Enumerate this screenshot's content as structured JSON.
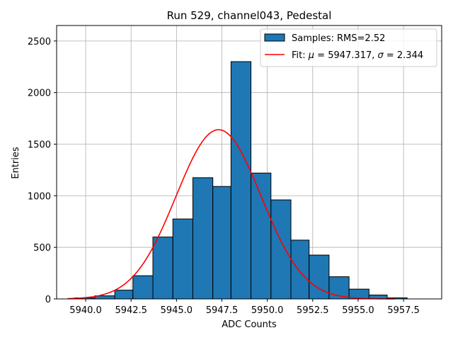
{
  "chart_data": {
    "type": "bar",
    "title": "Run 529, channel043, Pedestal",
    "xlabel": "ADC Counts",
    "ylabel": "Entries",
    "xlim": [
      5938.4,
      5959.6
    ],
    "ylim": [
      0,
      2650
    ],
    "grid": true,
    "legend_position": "top-right",
    "bar_color": "#1f77b4",
    "fit_color": "#ff0000",
    "x_ticks": [
      {
        "value": 5940.0,
        "label": "5940.0"
      },
      {
        "value": 5942.5,
        "label": "5942.5"
      },
      {
        "value": 5945.0,
        "label": "5945.0"
      },
      {
        "value": 5947.5,
        "label": "5947.5"
      },
      {
        "value": 5950.0,
        "label": "5950.0"
      },
      {
        "value": 5952.5,
        "label": "5952.5"
      },
      {
        "value": 5955.0,
        "label": "5955.0"
      },
      {
        "value": 5957.5,
        "label": "5957.5"
      }
    ],
    "y_ticks": [
      {
        "value": 0,
        "label": "0"
      },
      {
        "value": 500,
        "label": "500"
      },
      {
        "value": 1000,
        "label": "1000"
      },
      {
        "value": 1500,
        "label": "1500"
      },
      {
        "value": 2000,
        "label": "2000"
      },
      {
        "value": 2500,
        "label": "2500"
      }
    ],
    "bins": [
      {
        "x0": 5939.4,
        "x1": 5940.5,
        "count": 10
      },
      {
        "x0": 5940.5,
        "x1": 5941.6,
        "count": 30
      },
      {
        "x0": 5941.6,
        "x1": 5942.6,
        "count": 85
      },
      {
        "x0": 5942.6,
        "x1": 5943.7,
        "count": 225
      },
      {
        "x0": 5943.7,
        "x1": 5944.8,
        "count": 600
      },
      {
        "x0": 5944.8,
        "x1": 5945.9,
        "count": 775
      },
      {
        "x0": 5945.9,
        "x1": 5947.0,
        "count": 1175
      },
      {
        "x0": 5947.0,
        "x1": 5948.0,
        "count": 1090
      },
      {
        "x0": 5948.0,
        "x1": 5949.1,
        "count": 2300
      },
      {
        "x0": 5949.1,
        "x1": 5950.2,
        "count": 1220
      },
      {
        "x0": 5950.2,
        "x1": 5951.3,
        "count": 960
      },
      {
        "x0": 5951.3,
        "x1": 5952.3,
        "count": 570
      },
      {
        "x0": 5952.3,
        "x1": 5953.4,
        "count": 425
      },
      {
        "x0": 5953.4,
        "x1": 5954.5,
        "count": 215
      },
      {
        "x0": 5954.5,
        "x1": 5955.6,
        "count": 95
      },
      {
        "x0": 5955.6,
        "x1": 5956.6,
        "count": 38
      },
      {
        "x0": 5956.6,
        "x1": 5957.7,
        "count": 10
      }
    ],
    "series": [
      {
        "name": "Samples: RMS=2.52",
        "kind": "histogram"
      },
      {
        "name": "Fit: μ = 5947.317, σ = 2.344",
        "kind": "gaussian-fit",
        "mu": 5947.317,
        "sigma": 2.344,
        "amplitude": 1640,
        "x_range": [
          5939.0,
          5957.0
        ]
      }
    ],
    "legend": {
      "samples_label": "Samples: RMS=2.52",
      "fit_label_prefix": "Fit: ",
      "fit_mu_symbol": "μ",
      "fit_mu_text": " = 5947.317, ",
      "fit_sigma_symbol": "σ",
      "fit_sigma_text": " = 2.344"
    }
  }
}
